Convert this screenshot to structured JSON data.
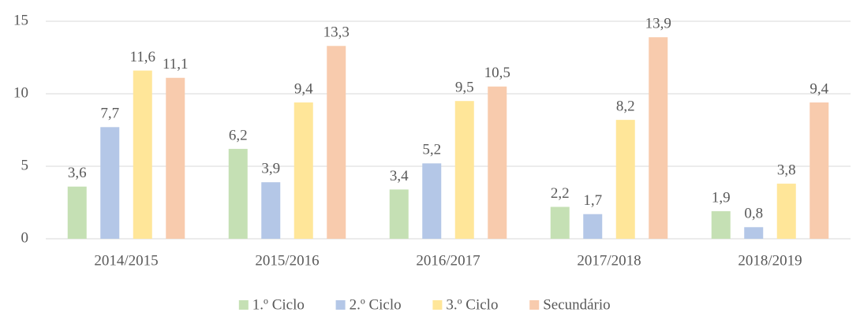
{
  "chart_data": {
    "type": "bar",
    "categories": [
      "2014/2015",
      "2015/2016",
      "2016/2017",
      "2017/2018",
      "2018/2019"
    ],
    "series": [
      {
        "name": "1.º Ciclo",
        "color": "#c5e0b4",
        "values": [
          3.6,
          6.2,
          3.4,
          2.2,
          1.9
        ],
        "value_labels": [
          "3,6",
          "6,2",
          "3,4",
          "2,2",
          "1,9"
        ]
      },
      {
        "name": "2.º Ciclo",
        "color": "#b4c7e7",
        "values": [
          7.7,
          3.9,
          5.2,
          1.7,
          0.8
        ],
        "value_labels": [
          "7,7",
          "3,9",
          "5,2",
          "1,7",
          "0,8"
        ]
      },
      {
        "name": "3.º Ciclo",
        "color": "#ffe699",
        "values": [
          11.6,
          9.4,
          9.5,
          8.2,
          3.8
        ],
        "value_labels": [
          "11,6",
          "9,4",
          "9,5",
          "8,2",
          "3,8"
        ]
      },
      {
        "name": "Secundário",
        "color": "#f8cbad",
        "values": [
          11.1,
          13.3,
          10.5,
          13.9,
          9.4
        ],
        "value_labels": [
          "11,1",
          "13,3",
          "10,5",
          "13,9",
          "9,4"
        ]
      }
    ],
    "ylim": [
      0,
      15
    ],
    "yticks": [
      0,
      5,
      10,
      15
    ],
    "grid": true,
    "legend": "bottom"
  }
}
